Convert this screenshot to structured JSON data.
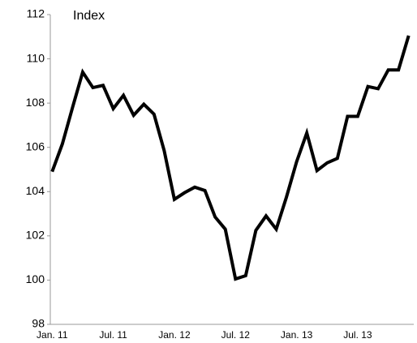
{
  "chart_data": {
    "type": "line",
    "y_label": "Index",
    "categories": [
      "Jan. 11",
      null,
      null,
      null,
      null,
      null,
      "Jul. 11",
      null,
      null,
      null,
      null,
      null,
      "Jan. 12",
      null,
      null,
      null,
      null,
      null,
      "Jul. 12",
      null,
      null,
      null,
      null,
      null,
      "Jan. 13",
      null,
      null,
      null,
      null,
      null,
      "Jul. 13",
      null,
      null,
      null,
      null,
      null
    ],
    "values": [
      104.9,
      106.15,
      107.8,
      109.4,
      108.7,
      108.8,
      107.75,
      108.35,
      107.45,
      107.95,
      107.5,
      105.85,
      103.65,
      103.95,
      104.2,
      104.05,
      102.85,
      102.3,
      100.05,
      100.2,
      102.25,
      102.9,
      102.3,
      103.75,
      105.35,
      106.65,
      104.95,
      105.3,
      105.5,
      107.4,
      107.4,
      108.75,
      108.65,
      109.5,
      109.5,
      111.05
    ],
    "color": "#000000",
    "ylim": [
      98,
      112
    ],
    "yticks": [
      98,
      100,
      102,
      104,
      106,
      108,
      110,
      112
    ],
    "grid": false
  }
}
